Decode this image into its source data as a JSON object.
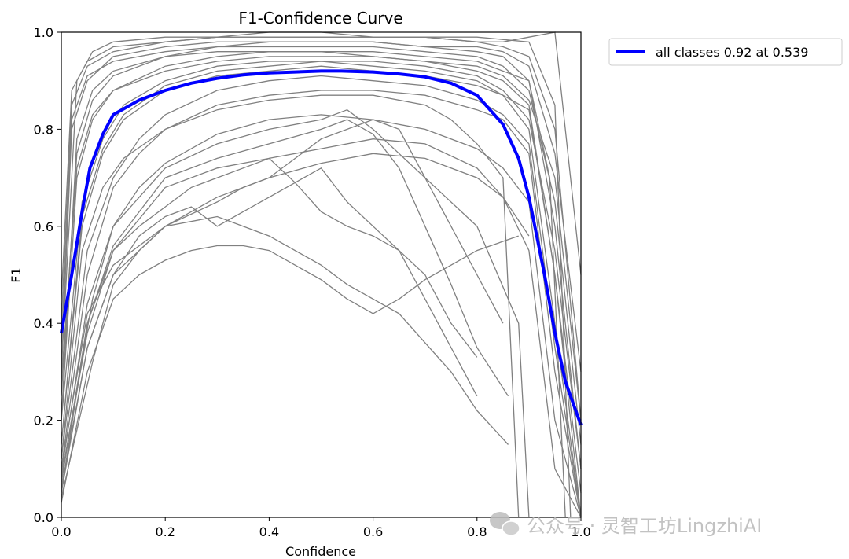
{
  "chart_data": {
    "type": "line",
    "title": "F1-Confidence Curve",
    "xlabel": "Confidence",
    "ylabel": "F1",
    "xlim": [
      0.0,
      1.0
    ],
    "ylim": [
      0.0,
      1.0
    ],
    "xticks": [
      0.0,
      0.2,
      0.4,
      0.6,
      0.8,
      1.0
    ],
    "xtick_labels": [
      "0.0",
      "0.2",
      "0.4",
      "0.6",
      "0.8",
      "1.0"
    ],
    "yticks": [
      0.0,
      0.2,
      0.4,
      0.6,
      0.8,
      1.0
    ],
    "ytick_labels": [
      "0.0",
      "0.2",
      "0.4",
      "0.6",
      "0.8",
      "1.0"
    ],
    "grid": false,
    "legend_position": "outside-top-right",
    "series": [
      {
        "name": "all classes 0.92 at 0.539",
        "color": "#0000ff",
        "x": [
          0.0,
          0.02,
          0.04,
          0.055,
          0.08,
          0.1,
          0.15,
          0.2,
          0.25,
          0.3,
          0.35,
          0.4,
          0.45,
          0.5,
          0.539,
          0.6,
          0.65,
          0.7,
          0.75,
          0.8,
          0.85,
          0.88,
          0.9,
          0.93,
          0.95,
          0.97,
          1.0
        ],
        "y": [
          0.38,
          0.5,
          0.63,
          0.72,
          0.79,
          0.83,
          0.86,
          0.88,
          0.895,
          0.905,
          0.912,
          0.916,
          0.918,
          0.92,
          0.92,
          0.918,
          0.914,
          0.908,
          0.895,
          0.87,
          0.81,
          0.74,
          0.66,
          0.5,
          0.38,
          0.28,
          0.19
        ]
      }
    ],
    "per_class_color": "#808080",
    "per_class_series": [
      {
        "x": [
          0.0,
          0.02,
          0.05,
          0.1,
          0.2,
          0.3,
          0.4,
          0.5,
          0.6,
          0.7,
          0.8,
          0.85,
          0.9,
          0.95,
          1.0
        ],
        "y": [
          0.3,
          0.8,
          0.9,
          0.95,
          0.97,
          0.98,
          0.98,
          0.98,
          0.98,
          0.97,
          0.96,
          0.95,
          0.9,
          0.6,
          0.1
        ]
      },
      {
        "x": [
          0.0,
          0.02,
          0.05,
          0.1,
          0.2,
          0.3,
          0.4,
          0.5,
          0.6,
          0.7,
          0.8,
          0.85,
          0.9,
          0.95,
          1.0
        ],
        "y": [
          0.4,
          0.85,
          0.93,
          0.96,
          0.98,
          0.99,
          0.99,
          0.99,
          0.99,
          0.99,
          0.98,
          0.97,
          0.95,
          0.8,
          0.2
        ]
      },
      {
        "x": [
          0.0,
          0.03,
          0.06,
          0.1,
          0.2,
          0.3,
          0.4,
          0.5,
          0.6,
          0.7,
          0.8,
          0.85,
          0.9,
          0.95,
          1.0
        ],
        "y": [
          0.2,
          0.7,
          0.82,
          0.88,
          0.93,
          0.95,
          0.96,
          0.96,
          0.95,
          0.94,
          0.92,
          0.9,
          0.85,
          0.5,
          0.05
        ]
      },
      {
        "x": [
          0.0,
          0.03,
          0.06,
          0.1,
          0.2,
          0.3,
          0.4,
          0.5,
          0.6,
          0.7,
          0.8,
          0.85,
          0.9,
          0.95,
          1.0
        ],
        "y": [
          0.25,
          0.75,
          0.86,
          0.91,
          0.95,
          0.97,
          0.97,
          0.97,
          0.97,
          0.96,
          0.95,
          0.93,
          0.88,
          0.65,
          0.15
        ]
      },
      {
        "x": [
          0.0,
          0.02,
          0.05,
          0.1,
          0.2,
          0.3,
          0.4,
          0.5,
          0.6,
          0.7,
          0.8,
          0.85,
          0.9,
          0.95,
          1.0
        ],
        "y": [
          0.35,
          0.82,
          0.91,
          0.94,
          0.96,
          0.97,
          0.98,
          0.98,
          0.98,
          0.97,
          0.97,
          0.96,
          0.93,
          0.75,
          0.3
        ]
      },
      {
        "x": [
          0.0,
          0.04,
          0.08,
          0.12,
          0.2,
          0.3,
          0.4,
          0.5,
          0.6,
          0.7,
          0.8,
          0.85,
          0.9,
          0.95,
          1.0
        ],
        "y": [
          0.15,
          0.6,
          0.75,
          0.82,
          0.88,
          0.91,
          0.92,
          0.93,
          0.92,
          0.91,
          0.89,
          0.87,
          0.8,
          0.4,
          0.0
        ]
      },
      {
        "x": [
          0.0,
          0.04,
          0.08,
          0.12,
          0.2,
          0.3,
          0.4,
          0.5,
          0.6,
          0.7,
          0.8,
          0.85,
          0.9,
          0.95,
          1.0
        ],
        "y": [
          0.2,
          0.65,
          0.78,
          0.85,
          0.9,
          0.93,
          0.94,
          0.94,
          0.94,
          0.93,
          0.91,
          0.88,
          0.82,
          0.55,
          0.1
        ]
      },
      {
        "x": [
          0.0,
          0.05,
          0.1,
          0.15,
          0.2,
          0.3,
          0.4,
          0.5,
          0.6,
          0.7,
          0.8,
          0.85,
          0.9,
          0.95,
          1.0
        ],
        "y": [
          0.1,
          0.5,
          0.68,
          0.75,
          0.8,
          0.85,
          0.87,
          0.88,
          0.88,
          0.87,
          0.84,
          0.82,
          0.75,
          0.3,
          0.0
        ]
      },
      {
        "x": [
          0.0,
          0.05,
          0.1,
          0.15,
          0.2,
          0.3,
          0.4,
          0.5,
          0.6,
          0.7,
          0.8,
          0.85,
          0.9,
          0.95,
          1.0
        ],
        "y": [
          0.12,
          0.55,
          0.7,
          0.78,
          0.83,
          0.88,
          0.9,
          0.91,
          0.9,
          0.89,
          0.86,
          0.83,
          0.77,
          0.35,
          0.0
        ]
      },
      {
        "x": [
          0.0,
          0.06,
          0.1,
          0.15,
          0.2,
          0.3,
          0.4,
          0.5,
          0.6,
          0.7,
          0.8,
          0.85,
          0.9,
          0.95,
          1.0
        ],
        "y": [
          0.08,
          0.45,
          0.6,
          0.68,
          0.73,
          0.79,
          0.82,
          0.83,
          0.82,
          0.8,
          0.76,
          0.72,
          0.65,
          0.2,
          0.0
        ]
      },
      {
        "x": [
          0.0,
          0.05,
          0.1,
          0.15,
          0.2,
          0.25,
          0.3,
          0.35,
          0.4,
          0.5,
          0.6,
          0.7,
          0.8,
          0.85,
          0.9,
          0.95,
          1.0
        ],
        "y": [
          0.05,
          0.4,
          0.55,
          0.6,
          0.64,
          0.68,
          0.7,
          0.72,
          0.74,
          0.76,
          0.78,
          0.77,
          0.72,
          0.66,
          0.55,
          0.1,
          0.0
        ]
      },
      {
        "x": [
          0.0,
          0.05,
          0.1,
          0.15,
          0.2,
          0.25,
          0.3,
          0.35,
          0.4,
          0.45,
          0.5,
          0.55,
          0.6,
          0.65,
          0.7,
          0.75,
          0.8,
          0.88
        ],
        "y": [
          0.03,
          0.3,
          0.45,
          0.5,
          0.53,
          0.55,
          0.56,
          0.56,
          0.55,
          0.52,
          0.49,
          0.45,
          0.42,
          0.45,
          0.49,
          0.52,
          0.55,
          0.58
        ]
      },
      {
        "x": [
          0.0,
          0.05,
          0.1,
          0.15,
          0.2,
          0.25,
          0.3,
          0.35,
          0.4,
          0.45,
          0.5,
          0.55,
          0.6,
          0.65,
          0.7,
          0.75,
          0.8
        ],
        "y": [
          0.06,
          0.35,
          0.5,
          0.58,
          0.62,
          0.64,
          0.6,
          0.63,
          0.66,
          0.69,
          0.72,
          0.65,
          0.6,
          0.55,
          0.45,
          0.35,
          0.25
        ]
      },
      {
        "x": [
          0.0,
          0.05,
          0.1,
          0.2,
          0.3,
          0.4,
          0.5,
          0.55,
          0.6,
          0.65,
          0.7,
          0.75,
          0.8,
          0.86
        ],
        "y": [
          0.1,
          0.42,
          0.52,
          0.6,
          0.62,
          0.58,
          0.52,
          0.48,
          0.45,
          0.42,
          0.36,
          0.3,
          0.22,
          0.15
        ]
      },
      {
        "x": [
          0.0,
          0.05,
          0.1,
          0.2,
          0.3,
          0.4,
          0.45,
          0.5,
          0.55,
          0.6,
          0.65,
          0.7,
          0.75,
          0.8
        ],
        "y": [
          0.08,
          0.38,
          0.55,
          0.68,
          0.72,
          0.74,
          0.69,
          0.63,
          0.6,
          0.58,
          0.55,
          0.5,
          0.4,
          0.33
        ]
      },
      {
        "x": [
          0.0,
          0.05,
          0.1,
          0.2,
          0.3,
          0.4,
          0.5,
          0.55,
          0.6,
          0.65,
          0.7,
          0.75,
          0.8,
          0.86
        ],
        "y": [
          0.07,
          0.4,
          0.56,
          0.7,
          0.74,
          0.77,
          0.8,
          0.82,
          0.79,
          0.72,
          0.6,
          0.48,
          0.35,
          0.25
        ]
      },
      {
        "x": [
          0.0,
          0.05,
          0.1,
          0.2,
          0.3,
          0.4,
          0.5,
          0.55,
          0.6,
          0.65,
          0.7,
          0.75,
          0.8,
          0.85
        ],
        "y": [
          0.09,
          0.44,
          0.6,
          0.72,
          0.77,
          0.8,
          0.82,
          0.84,
          0.8,
          0.75,
          0.7,
          0.6,
          0.5,
          0.4
        ]
      },
      {
        "x": [
          0.0,
          0.05,
          0.1,
          0.2,
          0.3,
          0.35,
          0.4,
          0.5,
          0.6,
          0.65,
          0.7,
          0.8,
          0.88,
          0.9
        ],
        "y": [
          0.05,
          0.35,
          0.5,
          0.6,
          0.65,
          0.68,
          0.7,
          0.78,
          0.82,
          0.8,
          0.7,
          0.6,
          0.4,
          0.0
        ]
      },
      {
        "x": [
          0.0,
          0.04,
          0.08,
          0.12,
          0.2,
          0.3,
          0.4,
          0.5,
          0.6,
          0.7,
          0.75,
          0.8,
          0.85,
          0.88
        ],
        "y": [
          0.12,
          0.55,
          0.68,
          0.74,
          0.8,
          0.84,
          0.86,
          0.87,
          0.87,
          0.85,
          0.82,
          0.77,
          0.7,
          0.0
        ]
      },
      {
        "x": [
          0.0,
          0.03,
          0.06,
          0.1,
          0.2,
          0.3,
          0.4,
          0.5,
          0.6,
          0.7,
          0.8,
          0.9,
          0.95,
          0.98
        ],
        "y": [
          0.3,
          0.9,
          0.96,
          0.98,
          0.99,
          0.99,
          0.99,
          0.99,
          0.99,
          0.99,
          0.99,
          0.98,
          0.85,
          0.0
        ]
      },
      {
        "x": [
          0.0,
          0.03,
          0.06,
          0.1,
          0.2,
          0.3,
          0.4,
          0.5,
          0.6,
          0.7,
          0.8,
          0.9,
          0.94,
          0.97
        ],
        "y": [
          0.2,
          0.78,
          0.88,
          0.92,
          0.95,
          0.96,
          0.96,
          0.96,
          0.96,
          0.95,
          0.94,
          0.9,
          0.7,
          0.0
        ]
      },
      {
        "x": [
          0.0,
          0.04,
          0.08,
          0.12,
          0.2,
          0.3,
          0.4,
          0.5,
          0.6,
          0.7,
          0.8,
          0.9,
          0.95,
          1.0
        ],
        "y": [
          0.15,
          0.62,
          0.76,
          0.83,
          0.89,
          0.92,
          0.93,
          0.94,
          0.93,
          0.92,
          0.9,
          0.84,
          0.5,
          0.0
        ]
      },
      {
        "x": [
          0.0,
          0.06,
          0.1,
          0.15,
          0.2,
          0.25,
          0.3,
          0.4,
          0.5,
          0.6,
          0.7,
          0.8,
          0.85,
          0.9
        ],
        "y": [
          0.04,
          0.32,
          0.48,
          0.55,
          0.6,
          0.63,
          0.66,
          0.7,
          0.73,
          0.75,
          0.74,
          0.7,
          0.66,
          0.58
        ]
      },
      {
        "x": [
          0.0,
          0.02,
          0.05,
          0.1,
          0.2,
          0.3,
          0.4,
          0.5,
          0.6,
          0.7,
          0.8,
          0.85,
          0.9,
          0.95,
          1.0
        ],
        "y": [
          0.45,
          0.88,
          0.94,
          0.97,
          0.98,
          0.99,
          1.0,
          1.0,
          0.99,
          0.99,
          0.98,
          0.98,
          0.99,
          1.0,
          0.5
        ]
      },
      {
        "x": [
          0.0,
          0.03,
          0.06,
          0.1,
          0.2,
          0.3,
          0.4,
          0.5,
          0.6,
          0.7,
          0.8,
          0.85,
          0.9,
          0.95,
          1.0
        ],
        "y": [
          0.28,
          0.72,
          0.83,
          0.88,
          0.92,
          0.94,
          0.95,
          0.95,
          0.95,
          0.94,
          0.93,
          0.91,
          0.86,
          0.7,
          0.2
        ]
      }
    ]
  },
  "watermark": {
    "icon": "wechat-icon",
    "text": "公众号 · 灵智工坊LingzhiAI"
  }
}
